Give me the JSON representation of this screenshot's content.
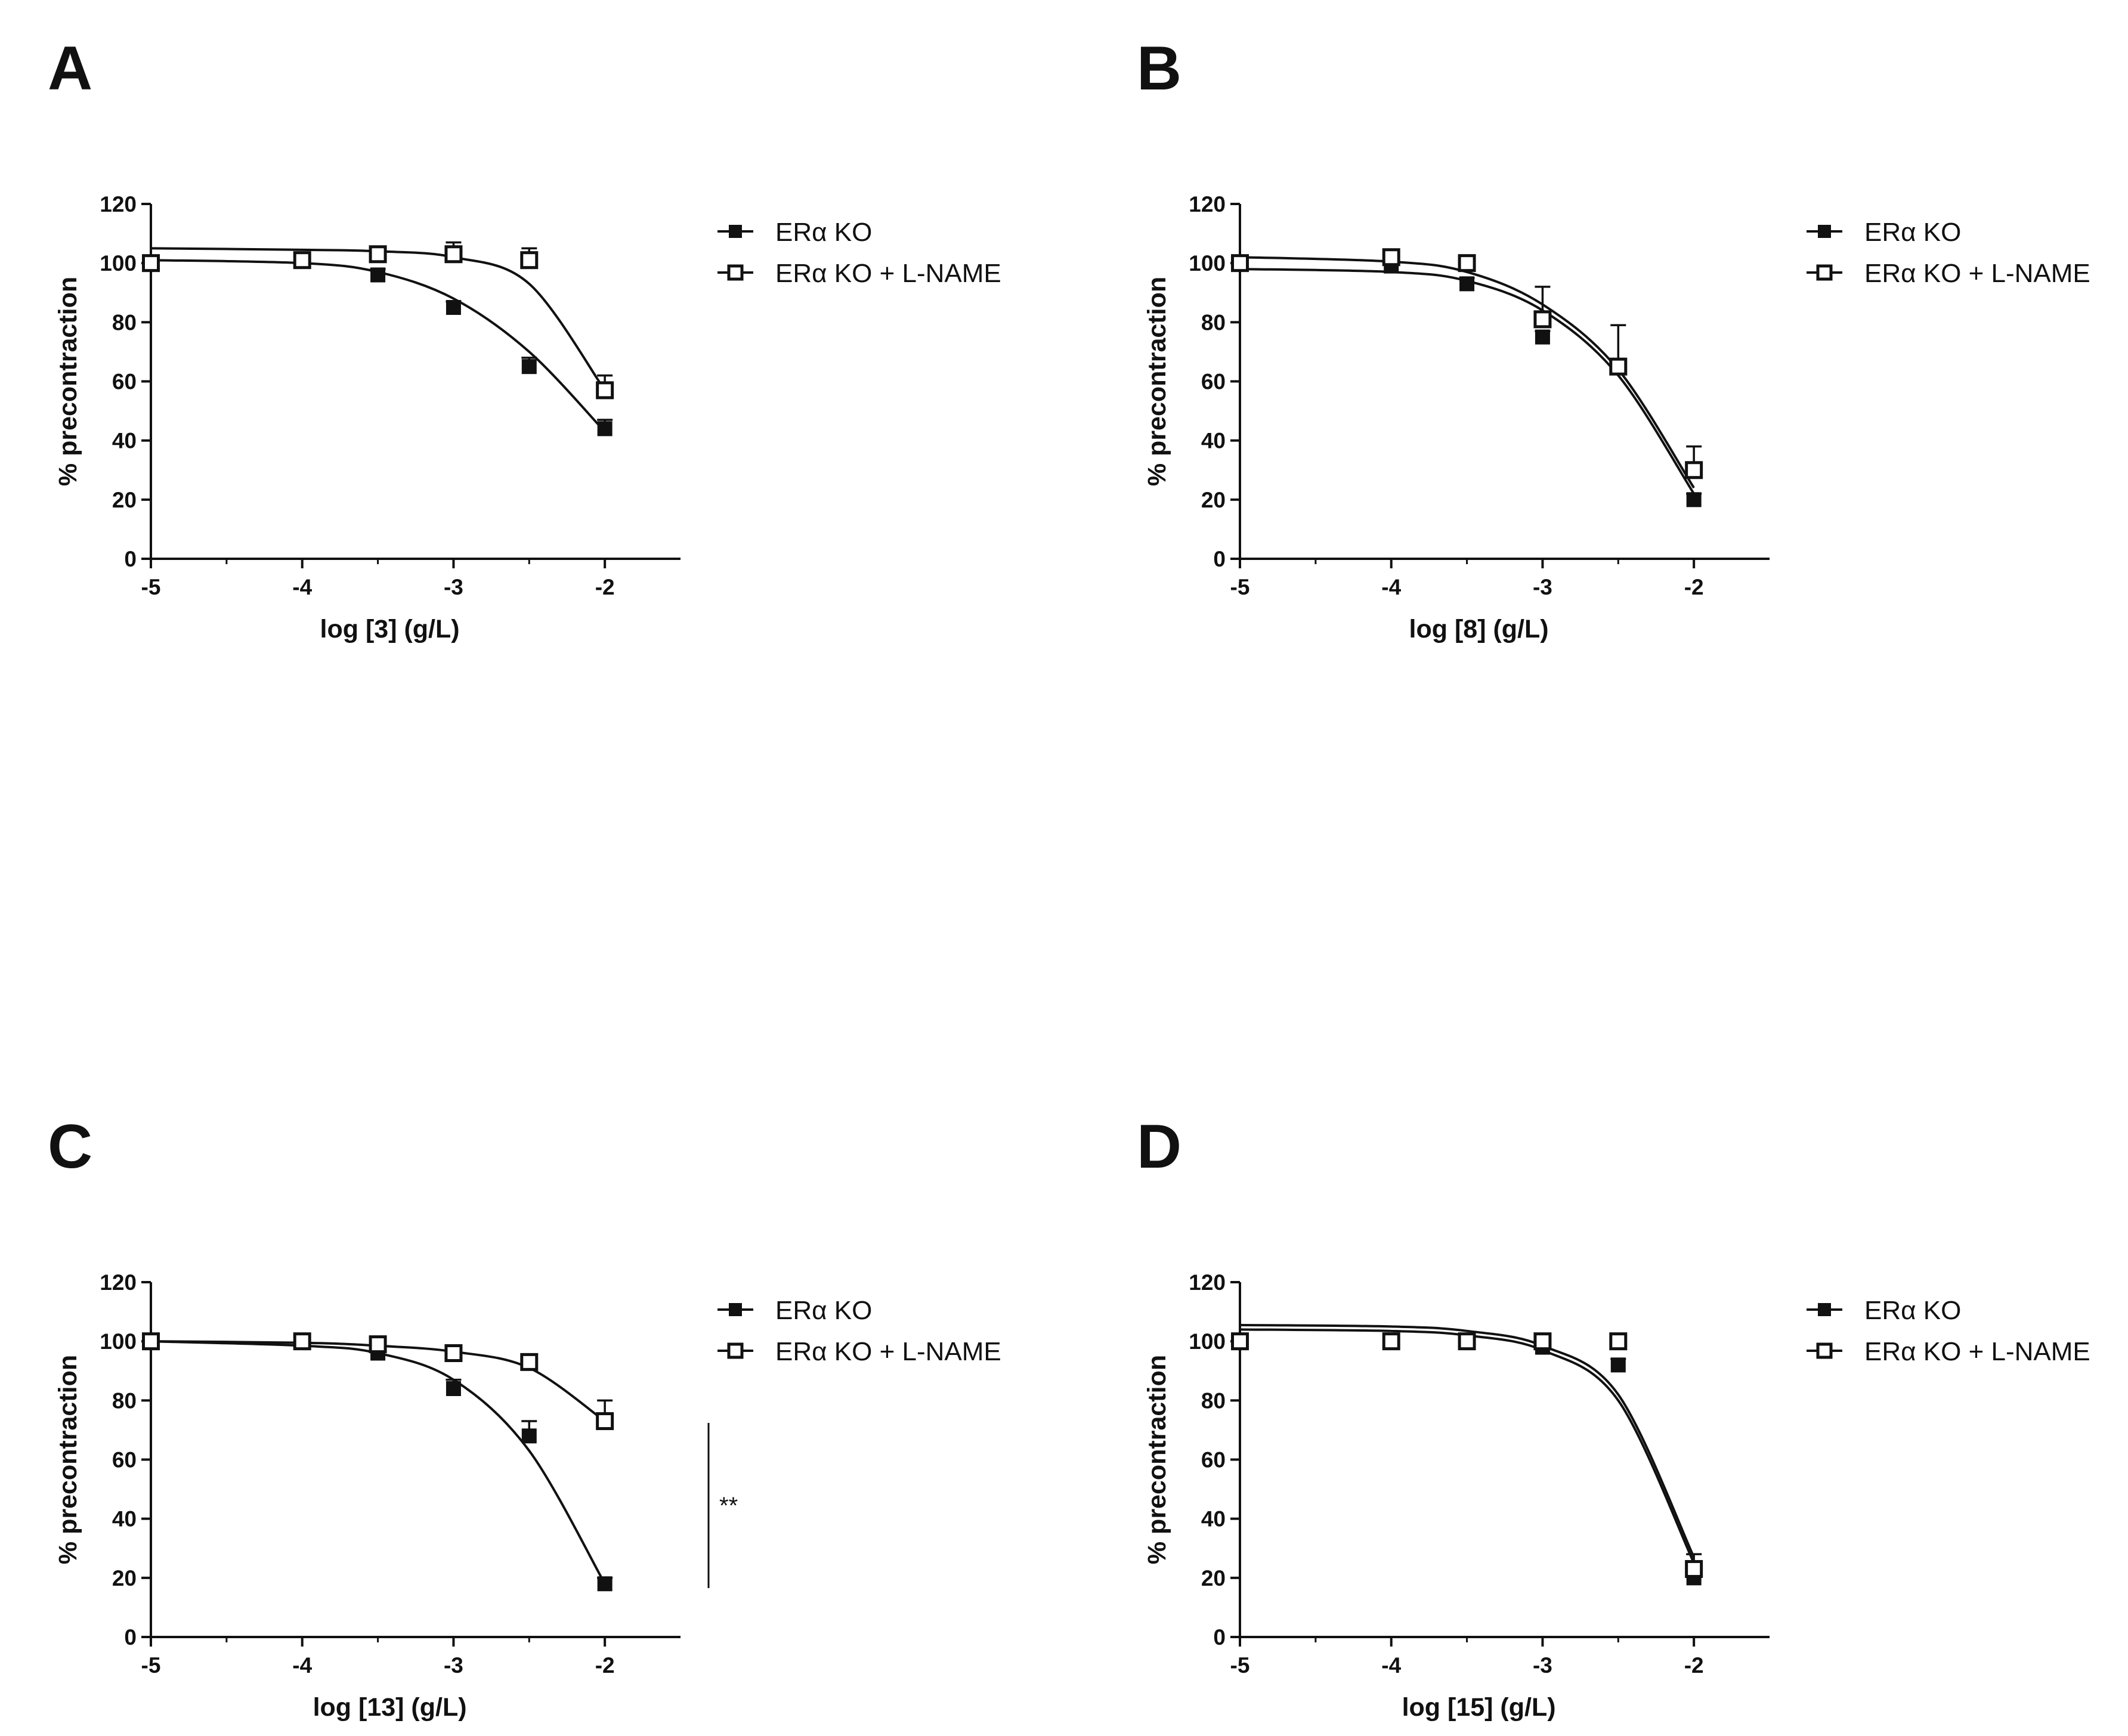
{
  "figure": {
    "panels": [
      {
        "letter": "A",
        "xlabel": "log [3] (g/L)",
        "ylabel": "% precontraction",
        "significance": ""
      },
      {
        "letter": "B",
        "xlabel": "log [8] (g/L)",
        "ylabel": "% precontraction",
        "significance": ""
      },
      {
        "letter": "C",
        "xlabel": "log [13] (g/L)",
        "ylabel": "% precontraction",
        "significance": "**"
      },
      {
        "letter": "D",
        "xlabel": "log [15] (g/L)",
        "ylabel": "% precontraction",
        "significance": ""
      }
    ]
  },
  "chart_data": [
    {
      "type": "scatter",
      "title": "A",
      "xlabel": "log [3] (g/L)",
      "ylabel": "% precontraction",
      "xlim": [
        -5,
        -1.5
      ],
      "ylim": [
        0,
        120
      ],
      "xticks": [
        -5,
        -4,
        -3,
        -2
      ],
      "yticks": [
        0,
        20,
        40,
        60,
        80,
        100,
        120
      ],
      "legend_position": "top-right, outside plot",
      "series": [
        {
          "name": "ERα KO",
          "marker": "filled-square",
          "x": [
            -5,
            -4,
            -3.5,
            -3,
            -2.5,
            -2
          ],
          "y": [
            100,
            101,
            96,
            85,
            65,
            44
          ],
          "err": [
            2,
            2,
            2,
            2,
            3,
            3
          ],
          "fit_y": [
            101,
            100,
            97,
            88,
            70,
            43
          ]
        },
        {
          "name": "ERα KO + L-NAME",
          "marker": "open-square",
          "x": [
            -5,
            -4,
            -3.5,
            -3,
            -2.5,
            -2
          ],
          "y": [
            100,
            101,
            103,
            103,
            101,
            57
          ],
          "err": [
            2,
            2,
            2,
            4,
            4,
            5
          ],
          "fit_y": [
            105,
            104.5,
            104,
            102,
            93,
            57
          ]
        }
      ]
    },
    {
      "type": "scatter",
      "title": "B",
      "xlabel": "log [8] (g/L)",
      "ylabel": "% precontraction",
      "xlim": [
        -5,
        -1.5
      ],
      "ylim": [
        0,
        120
      ],
      "xticks": [
        -5,
        -4,
        -3,
        -2
      ],
      "yticks": [
        0,
        20,
        40,
        60,
        80,
        100,
        120
      ],
      "legend_position": "top-right, outside plot",
      "series": [
        {
          "name": "ERα KO",
          "marker": "filled-square",
          "x": [
            -5,
            -4,
            -3.5,
            -3,
            -2.5,
            -2
          ],
          "y": [
            100,
            99,
            93,
            75,
            65,
            20
          ],
          "err": [
            2,
            2,
            2,
            2,
            2,
            2
          ],
          "fit_y": [
            98,
            97,
            94,
            84,
            62,
            22
          ]
        },
        {
          "name": "ERα KO + L-NAME",
          "marker": "open-square",
          "x": [
            -5,
            -4,
            -3.5,
            -3,
            -2.5,
            -2
          ],
          "y": [
            100,
            102,
            100,
            81,
            65,
            30
          ],
          "err": [
            2,
            2,
            2,
            11,
            14,
            8
          ],
          "fit_y": [
            102,
            100.5,
            97,
            86,
            64,
            24
          ]
        }
      ]
    },
    {
      "type": "scatter",
      "title": "C",
      "xlabel": "log [13] (g/L)",
      "ylabel": "% precontraction",
      "xlim": [
        -5,
        -1.5
      ],
      "ylim": [
        0,
        120
      ],
      "xticks": [
        -5,
        -4,
        -3,
        -2
      ],
      "yticks": [
        0,
        20,
        40,
        60,
        80,
        100,
        120
      ],
      "legend_position": "top-right, outside plot",
      "annotation": "**",
      "series": [
        {
          "name": "ERα KO",
          "marker": "filled-square",
          "x": [
            -5,
            -4,
            -3.5,
            -3,
            -2.5,
            -2
          ],
          "y": [
            100,
            100,
            96,
            84,
            68,
            18
          ],
          "err": [
            2,
            2,
            2,
            3,
            5,
            2
          ],
          "fit_y": [
            100,
            98.5,
            96,
            87,
            63,
            18
          ]
        },
        {
          "name": "ERα KO + L-NAME",
          "marker": "open-square",
          "x": [
            -5,
            -4,
            -3.5,
            -3,
            -2.5,
            -2
          ],
          "y": [
            100,
            100,
            99,
            96,
            93,
            73
          ],
          "err": [
            2,
            2,
            2,
            2,
            2,
            7
          ],
          "fit_y": [
            100,
            99.5,
            98.5,
            96.5,
            91,
            73
          ]
        }
      ]
    },
    {
      "type": "scatter",
      "title": "D",
      "xlabel": "log [15] (g/L)",
      "ylabel": "% precontraction",
      "xlim": [
        -5,
        -1.5
      ],
      "ylim": [
        0,
        120
      ],
      "xticks": [
        -5,
        -4,
        -3,
        -2
      ],
      "yticks": [
        0,
        20,
        40,
        60,
        80,
        100,
        120
      ],
      "legend_position": "top-right, outside plot",
      "series": [
        {
          "name": "ERα KO",
          "marker": "filled-square",
          "x": [
            -5,
            -4,
            -3.5,
            -3,
            -2.5,
            -2
          ],
          "y": [
            100,
            100,
            100,
            98,
            92,
            20
          ],
          "err": [
            2,
            2,
            2,
            2,
            2,
            3
          ],
          "fit_y": [
            104,
            103.5,
            102,
            97,
            80,
            25
          ]
        },
        {
          "name": "ERα KO + L-NAME",
          "marker": "open-square",
          "x": [
            -5,
            -4,
            -3.5,
            -3,
            -2.5,
            -2
          ],
          "y": [
            100,
            100,
            100,
            100,
            100,
            23
          ],
          "err": [
            2,
            2,
            2,
            2,
            2,
            5
          ],
          "fit_y": [
            105.5,
            105,
            103.5,
            98.5,
            82,
            27
          ]
        }
      ]
    }
  ]
}
